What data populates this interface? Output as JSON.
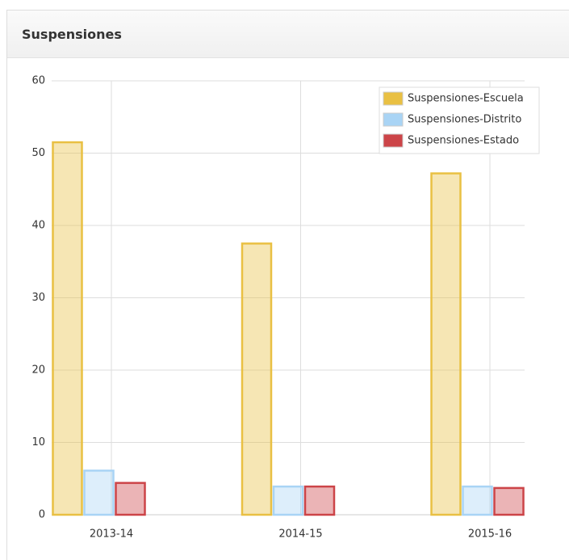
{
  "header": {
    "title": "Suspensiones"
  },
  "chart_data": {
    "type": "bar",
    "categories": [
      "2013-14",
      "2014-15",
      "2015-16"
    ],
    "series": [
      {
        "name": "Suspensiones-Escuela",
        "color": "#e9c043",
        "values": [
          51.5,
          37.5,
          47.2
        ]
      },
      {
        "name": "Suspensiones-Distrito",
        "color": "#a9d4f5",
        "values": [
          6.1,
          3.9,
          3.9
        ]
      },
      {
        "name": "Suspensiones-Estado",
        "color": "#cc4448",
        "values": [
          4.4,
          3.9,
          3.7
        ]
      }
    ],
    "ylim": [
      0,
      60
    ],
    "yticks": [
      0,
      10,
      20,
      30,
      40,
      50,
      60
    ],
    "grid": true,
    "legend": "upper right"
  }
}
